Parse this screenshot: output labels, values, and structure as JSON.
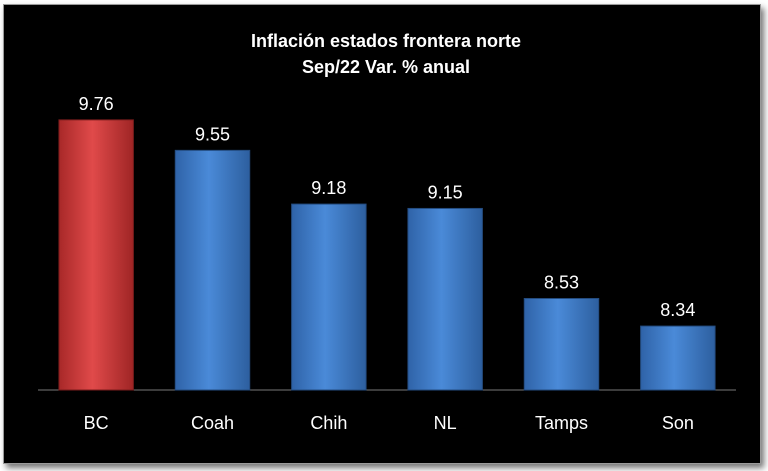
{
  "chart_data": {
    "type": "bar",
    "title": "Inflación estados frontera norte",
    "subtitle": "Sep/22 Var. % anual",
    "categories": [
      "BC",
      "Coah",
      "Chih",
      "NL",
      "Tamps",
      "Son"
    ],
    "values": [
      9.76,
      9.55,
      9.18,
      9.15,
      8.53,
      8.34
    ],
    "data_labels": [
      "9.76",
      "9.55",
      "9.18",
      "9.15",
      "8.53",
      "8.34"
    ],
    "highlight_category": "BC",
    "ylim": [
      7.9,
      10.0
    ],
    "grid": false,
    "legend": "none",
    "colors": {
      "background": "#000000",
      "bar": "#3a78c8",
      "highlight_bar": "#cc3333",
      "text": "#ffffff"
    }
  }
}
